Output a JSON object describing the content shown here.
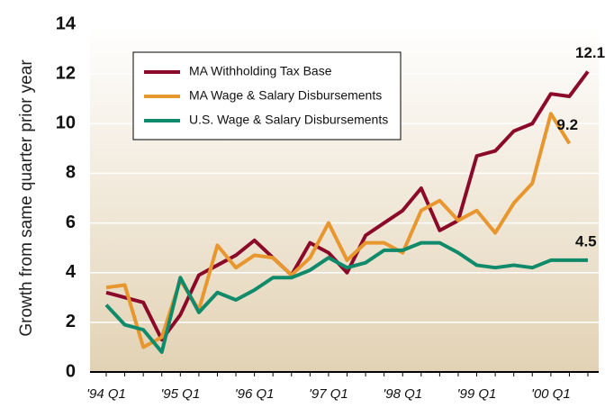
{
  "chart_data": {
    "type": "line",
    "ylabel": "Growth from same quarter prior year",
    "categories": [
      "'94 Q1",
      null,
      null,
      null,
      "'95 Q1",
      null,
      null,
      null,
      "'96 Q1",
      null,
      null,
      null,
      "'97 Q1",
      null,
      null,
      null,
      "'98 Q1",
      null,
      null,
      null,
      "'99 Q1",
      null,
      null,
      null,
      "'00 Q1",
      null,
      null
    ],
    "series": [
      {
        "name": "MA Withholding Tax Base",
        "color": "#8b0a2a",
        "end_label": "12.1",
        "values": [
          3.2,
          3.0,
          2.8,
          1.3,
          2.3,
          3.9,
          4.3,
          4.7,
          5.3,
          4.6,
          3.9,
          5.2,
          4.8,
          4.0,
          5.5,
          6.0,
          6.5,
          7.4,
          5.7,
          6.1,
          8.7,
          8.9,
          9.7,
          10.0,
          11.2,
          11.1,
          12.1
        ]
      },
      {
        "name": "MA Wage & Salary Disbursements",
        "color": "#e8962e",
        "end_label": "9.2",
        "values": [
          3.4,
          3.5,
          1.0,
          1.4,
          3.7,
          2.5,
          5.1,
          4.2,
          4.7,
          4.6,
          3.9,
          4.6,
          6.0,
          4.5,
          5.2,
          5.2,
          4.8,
          6.5,
          6.9,
          6.1,
          6.5,
          5.6,
          6.8,
          7.6,
          10.4,
          9.2,
          null
        ]
      },
      {
        "name": "U.S. Wage & Salary Disbursements",
        "color": "#0f8a6a",
        "end_label": "4.5",
        "values": [
          2.7,
          1.9,
          1.7,
          0.8,
          3.8,
          2.4,
          3.2,
          2.9,
          3.3,
          3.8,
          3.8,
          4.1,
          4.6,
          4.2,
          4.4,
          4.9,
          4.9,
          5.2,
          5.2,
          4.8,
          4.3,
          4.2,
          4.3,
          4.2,
          4.5,
          4.5,
          4.5
        ]
      }
    ],
    "ylim": [
      0,
      14
    ],
    "yticks": [
      0,
      2,
      4,
      6,
      8,
      10,
      12,
      14
    ],
    "grid": true
  }
}
